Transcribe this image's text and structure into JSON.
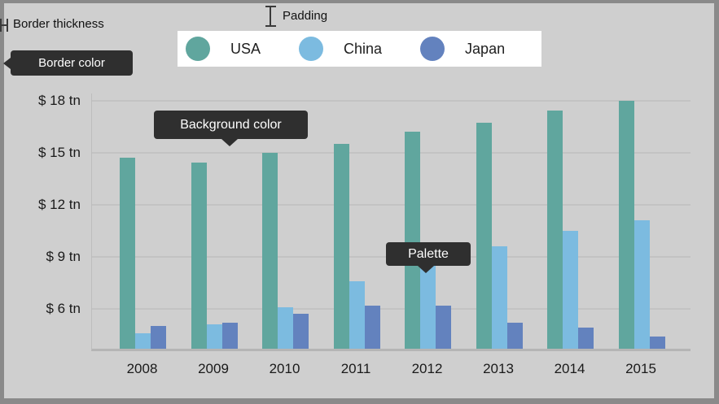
{
  "annotations": {
    "border_thickness_label": "Border thickness",
    "padding_label": "Padding",
    "border_color_tooltip": "Border color",
    "background_color_tooltip": "Background color",
    "palette_tooltip": "Palette"
  },
  "legend": {
    "items": [
      {
        "label": "USA",
        "color": "#60A69E"
      },
      {
        "label": "China",
        "color": "#7CBBE0"
      },
      {
        "label": "Japan",
        "color": "#6382BE"
      }
    ]
  },
  "chart_data": {
    "type": "bar",
    "title": "",
    "categories": [
      "2008",
      "2009",
      "2010",
      "2011",
      "2012",
      "2013",
      "2014",
      "2015"
    ],
    "series": [
      {
        "name": "USA",
        "color": "#60A69E",
        "values": [
          14.7,
          14.4,
          15.0,
          15.5,
          16.2,
          16.7,
          17.4,
          18.0
        ]
      },
      {
        "name": "China",
        "color": "#7CBBE0",
        "values": [
          4.6,
          5.1,
          6.1,
          7.6,
          8.6,
          9.6,
          10.5,
          11.1
        ]
      },
      {
        "name": "Japan",
        "color": "#6382BE",
        "values": [
          5.0,
          5.2,
          5.7,
          6.2,
          6.2,
          5.2,
          4.9,
          4.4
        ]
      }
    ],
    "xlabel": "",
    "ylabel": "",
    "y_ticks": [
      {
        "value": 18,
        "label": "$ 18 tn"
      },
      {
        "value": 15,
        "label": "$ 15 tn"
      },
      {
        "value": 12,
        "label": "$ 12 tn"
      },
      {
        "value": 9,
        "label": "$ 9 tn"
      },
      {
        "value": 6,
        "label": "$ 6 tn"
      }
    ],
    "ylim": [
      3.7,
      18.4
    ],
    "grid": true,
    "legend_position": "top"
  },
  "icons": {
    "border_thickness_marker": "i-beam-horizontal",
    "padding_marker": "i-beam-vertical",
    "legend_marker": "circle",
    "tooltip_arrow": "triangle"
  },
  "colors": {
    "frame_border": "#8A8A8A",
    "background": "#CFCFCF",
    "gridline": "#C3C3C3",
    "axis_line": "#B5B5B5",
    "tooltip_bg": "#2F2F2F",
    "tooltip_text": "#FFFFFF",
    "legend_bg": "#FFFFFF",
    "text": "#1A1A1A"
  }
}
